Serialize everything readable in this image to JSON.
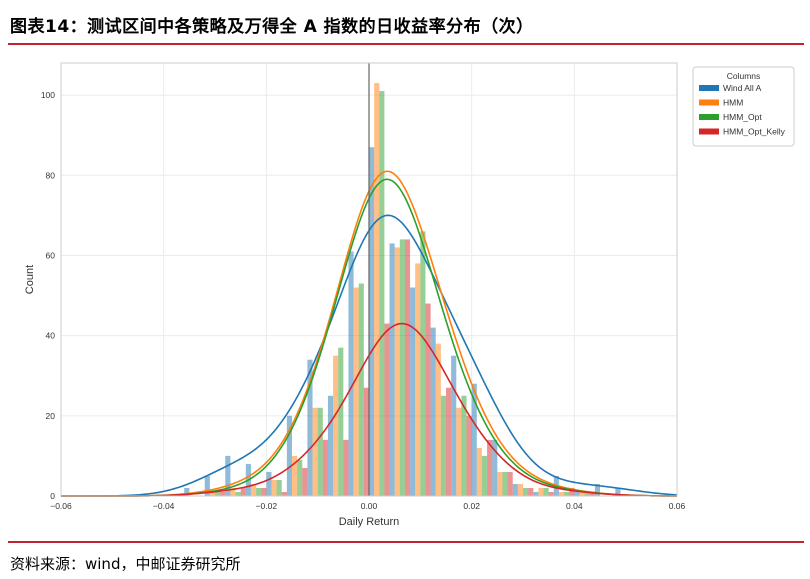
{
  "header": {
    "title": "图表14：测试区间中各策略及万得全 A 指数的日收益率分布（次）"
  },
  "footer": {
    "source": "资料来源：wind，中邮证券研究所"
  },
  "chart_data": {
    "type": "bar",
    "subtype": "histogram-with-kde",
    "xlabel": "Daily Return",
    "ylabel": "Count",
    "xlim": [
      -0.06,
      0.06
    ],
    "ylim": [
      0,
      108
    ],
    "xticks": [
      "−0.06",
      "−0.04",
      "−0.02",
      "0.00",
      "0.02",
      "0.04",
      "0.06"
    ],
    "xtick_values": [
      -0.06,
      -0.04,
      -0.02,
      0.0,
      0.02,
      0.04,
      0.06
    ],
    "yticks": [
      "0",
      "20",
      "40",
      "60",
      "80",
      "100"
    ],
    "ytick_values": [
      0,
      20,
      40,
      60,
      80,
      100
    ],
    "grid": true,
    "vline_x": 0.0,
    "legend": {
      "title": "Columns",
      "placement": "top-right"
    },
    "series": [
      {
        "name": "Wind All A",
        "color": "#1f77b4",
        "bins": [
          {
            "x": -0.034,
            "count": 2
          },
          {
            "x": -0.03,
            "count": 5
          },
          {
            "x": -0.026,
            "count": 10
          },
          {
            "x": -0.022,
            "count": 8
          },
          {
            "x": -0.018,
            "count": 6
          },
          {
            "x": -0.014,
            "count": 20
          },
          {
            "x": -0.01,
            "count": 34
          },
          {
            "x": -0.006,
            "count": 25
          },
          {
            "x": -0.002,
            "count": 61
          },
          {
            "x": 0.002,
            "count": 87
          },
          {
            "x": 0.006,
            "count": 63
          },
          {
            "x": 0.01,
            "count": 52
          },
          {
            "x": 0.014,
            "count": 42
          },
          {
            "x": 0.018,
            "count": 35
          },
          {
            "x": 0.022,
            "count": 28
          },
          {
            "x": 0.026,
            "count": 14
          },
          {
            "x": 0.03,
            "count": 3
          },
          {
            "x": 0.034,
            "count": 1
          },
          {
            "x": 0.038,
            "count": 5
          },
          {
            "x": 0.042,
            "count": 1
          },
          {
            "x": 0.046,
            "count": 3
          },
          {
            "x": 0.05,
            "count": 2
          }
        ],
        "kde_peak": 70
      },
      {
        "name": "HMM",
        "color": "#ff7f0e",
        "bins": [
          {
            "x": -0.03,
            "count": 1
          },
          {
            "x": -0.026,
            "count": 2
          },
          {
            "x": -0.022,
            "count": 3
          },
          {
            "x": -0.018,
            "count": 4
          },
          {
            "x": -0.014,
            "count": 10
          },
          {
            "x": -0.01,
            "count": 22
          },
          {
            "x": -0.006,
            "count": 35
          },
          {
            "x": -0.002,
            "count": 52
          },
          {
            "x": 0.002,
            "count": 103
          },
          {
            "x": 0.006,
            "count": 62
          },
          {
            "x": 0.01,
            "count": 58
          },
          {
            "x": 0.014,
            "count": 38
          },
          {
            "x": 0.018,
            "count": 22
          },
          {
            "x": 0.022,
            "count": 12
          },
          {
            "x": 0.026,
            "count": 6
          },
          {
            "x": 0.03,
            "count": 3
          },
          {
            "x": 0.034,
            "count": 2
          },
          {
            "x": 0.038,
            "count": 1
          },
          {
            "x": 0.042,
            "count": 1
          }
        ],
        "kde_peak": 81
      },
      {
        "name": "HMM_Opt",
        "color": "#2ca02c",
        "bins": [
          {
            "x": -0.03,
            "count": 1
          },
          {
            "x": -0.026,
            "count": 1
          },
          {
            "x": -0.022,
            "count": 2
          },
          {
            "x": -0.018,
            "count": 4
          },
          {
            "x": -0.014,
            "count": 9
          },
          {
            "x": -0.01,
            "count": 22
          },
          {
            "x": -0.006,
            "count": 37
          },
          {
            "x": -0.002,
            "count": 53
          },
          {
            "x": 0.002,
            "count": 101
          },
          {
            "x": 0.006,
            "count": 64
          },
          {
            "x": 0.01,
            "count": 66
          },
          {
            "x": 0.014,
            "count": 25
          },
          {
            "x": 0.018,
            "count": 25
          },
          {
            "x": 0.022,
            "count": 10
          },
          {
            "x": 0.026,
            "count": 6
          },
          {
            "x": 0.03,
            "count": 2
          },
          {
            "x": 0.034,
            "count": 2
          },
          {
            "x": 0.038,
            "count": 1
          },
          {
            "x": 0.042,
            "count": 1
          }
        ],
        "kde_peak": 79
      },
      {
        "name": "HMM_Opt_Kelly",
        "color": "#d62728",
        "bins": [
          {
            "x": -0.03,
            "count": 1
          },
          {
            "x": -0.026,
            "count": 2
          },
          {
            "x": -0.022,
            "count": 2
          },
          {
            "x": -0.018,
            "count": 1
          },
          {
            "x": -0.014,
            "count": 7
          },
          {
            "x": -0.01,
            "count": 14
          },
          {
            "x": -0.006,
            "count": 14
          },
          {
            "x": -0.002,
            "count": 27
          },
          {
            "x": 0.002,
            "count": 43
          },
          {
            "x": 0.006,
            "count": 64
          },
          {
            "x": 0.01,
            "count": 48
          },
          {
            "x": 0.014,
            "count": 27
          },
          {
            "x": 0.018,
            "count": 20
          },
          {
            "x": 0.022,
            "count": 14
          },
          {
            "x": 0.026,
            "count": 6
          },
          {
            "x": 0.03,
            "count": 2
          },
          {
            "x": 0.034,
            "count": 1
          },
          {
            "x": 0.038,
            "count": 2
          },
          {
            "x": 0.042,
            "count": 1
          }
        ],
        "kde_peak": 43
      }
    ]
  }
}
